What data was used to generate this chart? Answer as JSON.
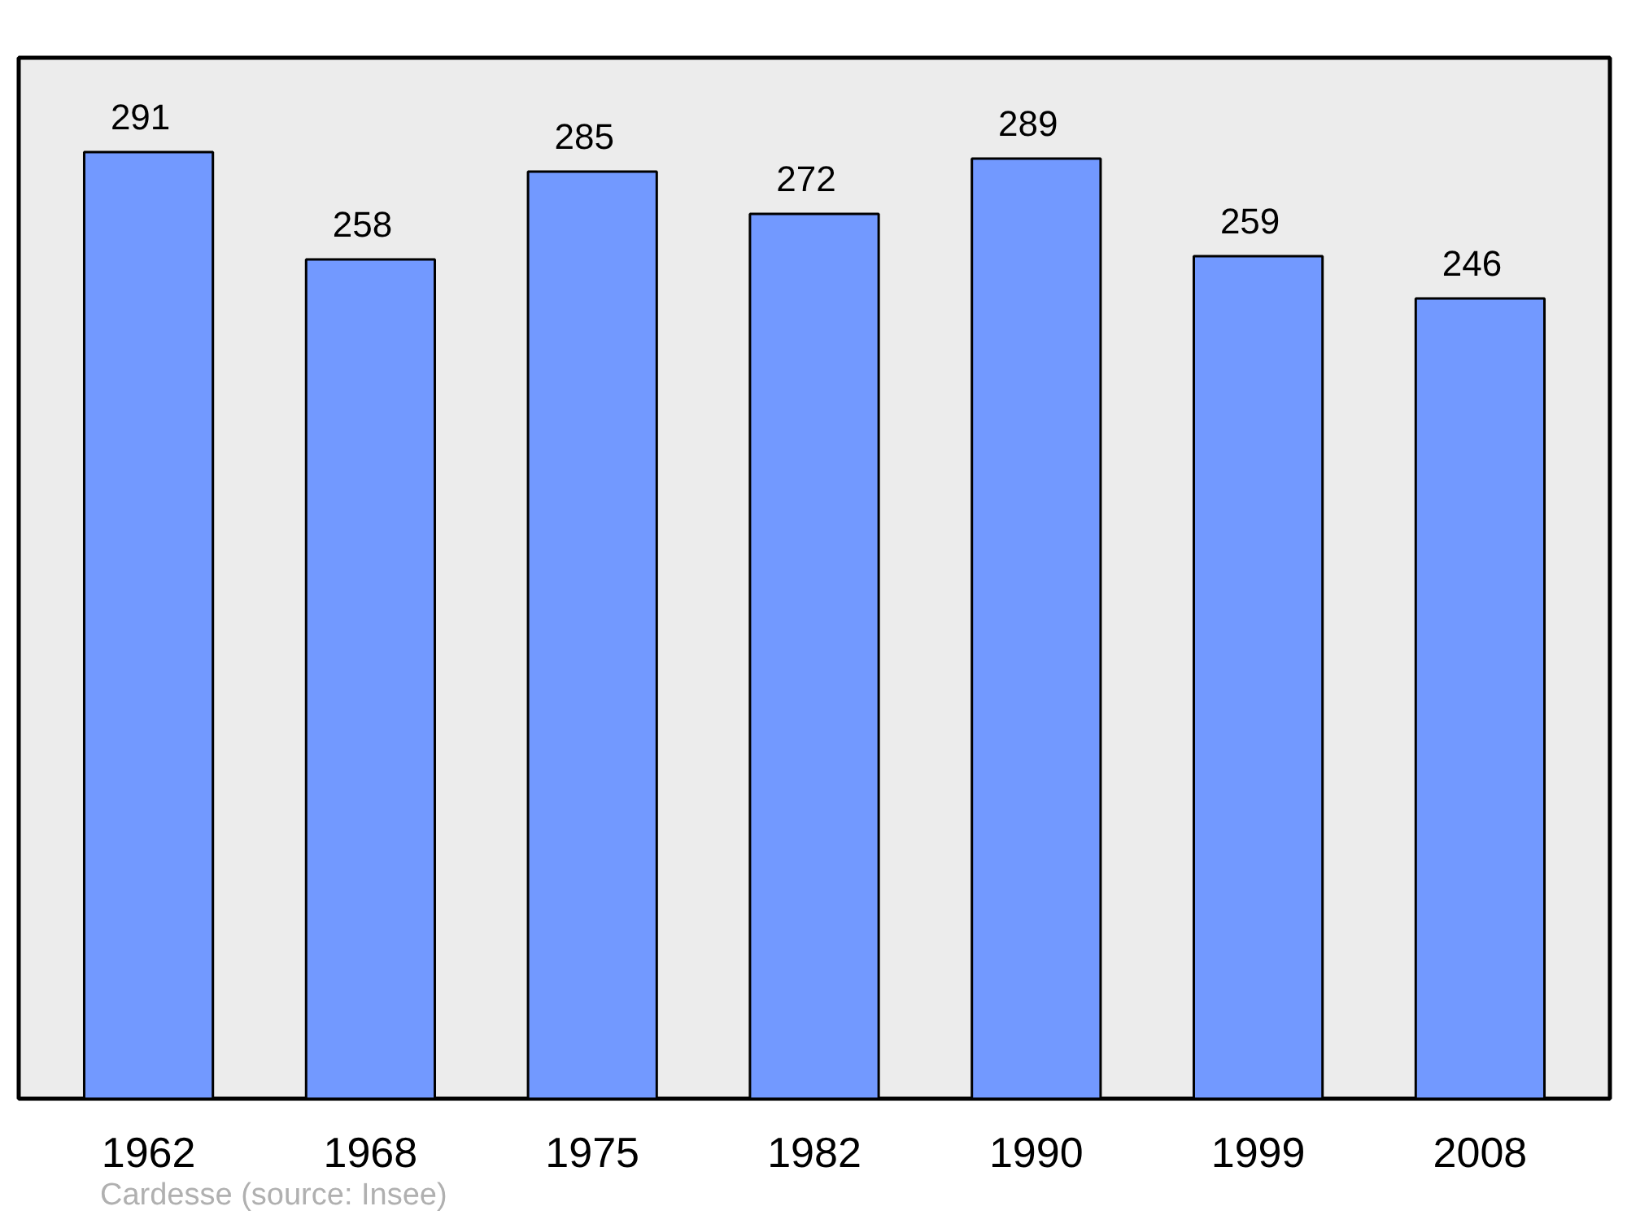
{
  "chart_data": {
    "type": "bar",
    "categories": [
      "1962",
      "1968",
      "1975",
      "1982",
      "1990",
      "1999",
      "2008"
    ],
    "values": [
      291,
      258,
      285,
      272,
      289,
      259,
      246
    ],
    "color": "#7299ff",
    "ylim": [
      0,
      320
    ],
    "data_labels": true,
    "tick_labels": "x",
    "annotations": [
      "Cardesse    (source: Insee)"
    ]
  }
}
